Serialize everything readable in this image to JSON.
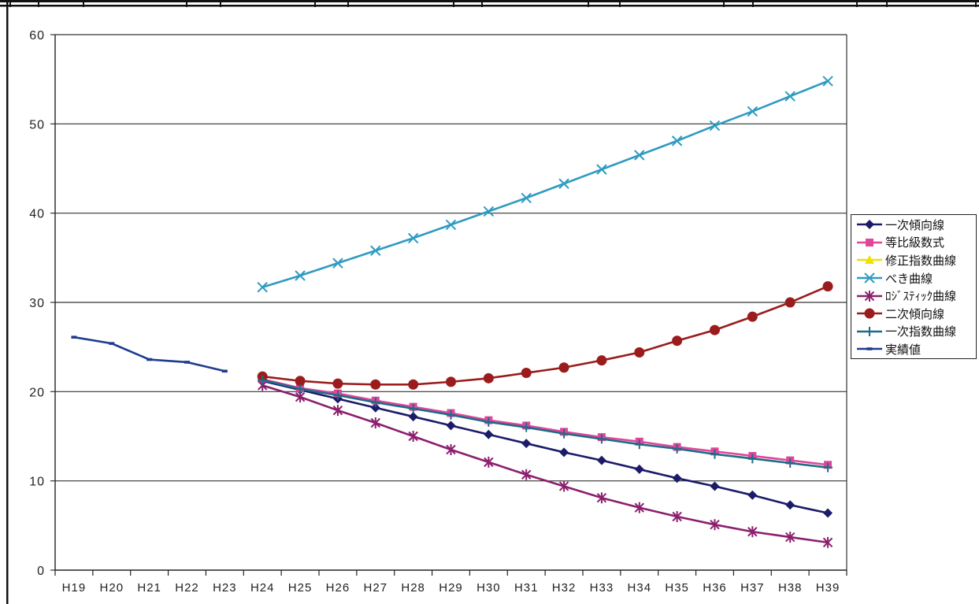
{
  "chart_data": {
    "type": "line",
    "categories": [
      "H19",
      "H20",
      "H21",
      "H22",
      "H23",
      "H24",
      "H25",
      "H26",
      "H27",
      "H28",
      "H29",
      "H30",
      "H31",
      "H32",
      "H33",
      "H34",
      "H35",
      "H36",
      "H37",
      "H38",
      "H39"
    ],
    "ylim": [
      0,
      60
    ],
    "yticks": [
      0,
      10,
      20,
      30,
      40,
      50,
      60
    ],
    "grid": true,
    "legend_position": "right",
    "series": [
      {
        "name": "一次傾向線",
        "color": "#1b1b6a",
        "marker": "diamond",
        "values": [
          null,
          null,
          null,
          null,
          null,
          21.2,
          20.2,
          19.2,
          18.2,
          17.2,
          16.2,
          15.2,
          14.2,
          13.2,
          12.3,
          11.3,
          10.3,
          9.4,
          8.4,
          7.3,
          6.4
        ]
      },
      {
        "name": "等比級数式",
        "color": "#e0479b",
        "marker": "square",
        "values": [
          null,
          null,
          null,
          null,
          null,
          21.4,
          20.4,
          19.8,
          19.0,
          18.3,
          17.6,
          16.8,
          16.2,
          15.5,
          14.9,
          14.4,
          13.8,
          13.3,
          12.8,
          12.3,
          11.8
        ]
      },
      {
        "name": "修正指数曲線",
        "color": "#f0e000",
        "marker": "triangle",
        "values": [
          null,
          null,
          null,
          null,
          null,
          null,
          null,
          null,
          null,
          null,
          null,
          null,
          null,
          null,
          null,
          null,
          null,
          null,
          null,
          null,
          null
        ]
      },
      {
        "name": "べき曲線",
        "color": "#2f9bc1",
        "marker": "x",
        "values": [
          null,
          null,
          null,
          null,
          null,
          31.7,
          33.0,
          34.4,
          35.8,
          37.2,
          38.7,
          40.2,
          41.7,
          43.3,
          44.9,
          46.5,
          48.1,
          49.8,
          51.4,
          53.1,
          54.8
        ]
      },
      {
        "name": "ﾛｼﾞｽﾃｨｯｸ曲線",
        "color": "#8c1f6e",
        "marker": "asterisk",
        "values": [
          null,
          null,
          null,
          null,
          null,
          20.7,
          19.4,
          17.9,
          16.5,
          15.0,
          13.5,
          12.1,
          10.7,
          9.4,
          8.1,
          7.0,
          6.0,
          5.1,
          4.3,
          3.7,
          3.1
        ]
      },
      {
        "name": "二次傾向線",
        "color": "#9b1c1c",
        "marker": "circle",
        "values": [
          null,
          null,
          null,
          null,
          null,
          21.7,
          21.2,
          20.9,
          20.8,
          20.8,
          21.1,
          21.5,
          22.1,
          22.7,
          23.5,
          24.4,
          25.7,
          26.9,
          28.4,
          30.0,
          31.8
        ]
      },
      {
        "name": "一次指数曲線",
        "color": "#1f6b88",
        "marker": "plus",
        "values": [
          null,
          null,
          null,
          null,
          null,
          21.3,
          20.3,
          19.6,
          18.8,
          18.1,
          17.4,
          16.6,
          16.0,
          15.3,
          14.7,
          14.1,
          13.6,
          13.0,
          12.5,
          12.0,
          11.5
        ]
      },
      {
        "name": "実績値",
        "color": "#1f3d8e",
        "marker": "dash",
        "values": [
          26.1,
          25.4,
          23.6,
          23.3,
          22.3,
          null,
          null,
          null,
          null,
          null,
          null,
          null,
          null,
          null,
          null,
          null,
          null,
          null,
          null,
          null,
          null
        ]
      }
    ]
  }
}
